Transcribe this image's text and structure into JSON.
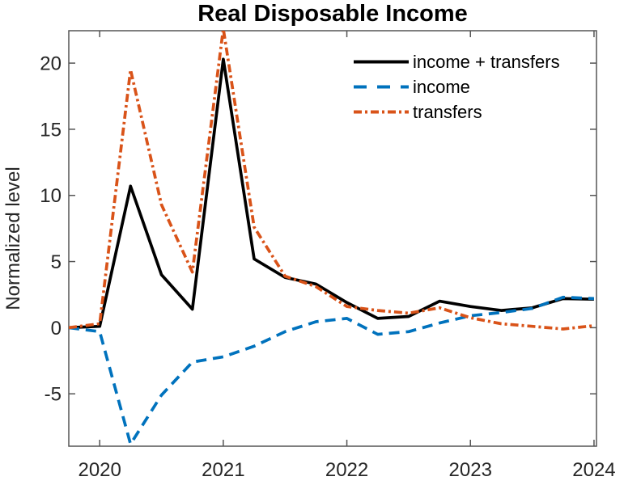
{
  "title": "Real Disposable Income",
  "colors": {
    "axis": "#555555",
    "tick_label": "#262626",
    "title": "#000000"
  },
  "chart_data": {
    "type": "line",
    "title": "Real Disposable Income",
    "xlabel": "",
    "ylabel": "Normalized level",
    "grid": false,
    "legend_position": "top-right-inside",
    "xlim": [
      2019.75,
      2024.02
    ],
    "ylim": [
      -8.96,
      22.45
    ],
    "xticks": [
      2020,
      2021,
      2022,
      2023,
      2024
    ],
    "yticks": [
      -5,
      0,
      5,
      10,
      15,
      20
    ],
    "x": [
      2019.75,
      2020.0,
      2020.25,
      2020.5,
      2020.75,
      2021.0,
      2021.25,
      2021.5,
      2021.75,
      2022.0,
      2022.25,
      2022.5,
      2022.75,
      2023.0,
      2023.25,
      2023.5,
      2023.75,
      2024.0
    ],
    "series": [
      {
        "name": "income + transfers",
        "color": "#000000",
        "dash": "solid",
        "values": [
          0,
          0.1,
          10.7,
          4.0,
          1.4,
          20.3,
          5.2,
          3.8,
          3.3,
          1.9,
          0.7,
          0.85,
          2.0,
          1.6,
          1.3,
          1.5,
          2.2,
          2.15
        ]
      },
      {
        "name": "income",
        "color": "#0072BD",
        "dash": "dashed",
        "values": [
          0,
          -0.3,
          -8.8,
          -5.1,
          -2.6,
          -2.2,
          -1.4,
          -0.3,
          0.45,
          0.7,
          -0.5,
          -0.3,
          0.35,
          0.9,
          1.15,
          1.45,
          2.3,
          2.2
        ]
      },
      {
        "name": "transfers",
        "color": "#D95319",
        "dash": "dashdot",
        "values": [
          0,
          0.3,
          19.5,
          9.3,
          4.2,
          22.6,
          7.6,
          3.9,
          3.1,
          1.6,
          1.3,
          1.1,
          1.5,
          0.75,
          0.3,
          0.1,
          -0.1,
          0.15
        ]
      }
    ]
  }
}
